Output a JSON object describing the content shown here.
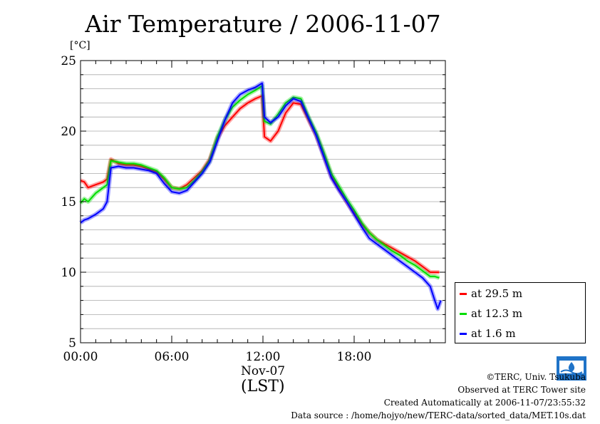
{
  "title": "Air Temperature / 2006-11-07",
  "unit_label": "[°C]",
  "x_date_label": "Nov-07",
  "x_axis_label": "(LST)",
  "colors": {
    "red": "#ff0000",
    "green": "#00dd00",
    "blue": "#0000ff"
  },
  "footer": {
    "credit": "©TERC, Univ. Tsukuba",
    "site": "Observed at TERC Tower site",
    "created": "Created Automatically at 2006-11-07/23:55:32",
    "source": "Data source : /home/hojyo/new/TERC-data/sorted_data/MET.10s.dat"
  },
  "logo_icon": "terc-logo-icon",
  "chart_data": {
    "type": "line",
    "title": "Air Temperature / 2006-11-07",
    "xlabel": "(LST)",
    "ylabel": "[°C]",
    "xlim": [
      0,
      24
    ],
    "ylim": [
      5,
      25
    ],
    "x_ticks": [
      {
        "value": 0,
        "label": "00:00"
      },
      {
        "value": 6,
        "label": "06:00"
      },
      {
        "value": 12,
        "label": "12:00"
      },
      {
        "value": 18,
        "label": "18:00"
      }
    ],
    "y_ticks": [
      {
        "value": 5,
        "label": "5"
      },
      {
        "value": 10,
        "label": "10"
      },
      {
        "value": 15,
        "label": "15"
      },
      {
        "value": 20,
        "label": "20"
      },
      {
        "value": 25,
        "label": "25"
      }
    ],
    "grid": true,
    "legend_position": "bottom-right outside",
    "series": [
      {
        "name": "at 29.5 m",
        "color": "#ff0000",
        "x": [
          0,
          0.25,
          0.5,
          1,
          1.5,
          1.75,
          2,
          2.5,
          3,
          3.5,
          4,
          4.5,
          5,
          5.5,
          6,
          6.5,
          7,
          7.5,
          8,
          8.5,
          9,
          9.5,
          10,
          10.5,
          11,
          11.5,
          11.95,
          12.1,
          12.5,
          13,
          13.5,
          14,
          14.5,
          15,
          15.5,
          16,
          16.5,
          17,
          17.5,
          18,
          18.5,
          19,
          19.5,
          20,
          20.5,
          21,
          21.5,
          22,
          22.5,
          23,
          23.3,
          23.6
        ],
        "y": [
          16.5,
          16.4,
          16.0,
          16.2,
          16.4,
          16.6,
          18.0,
          17.7,
          17.6,
          17.6,
          17.5,
          17.3,
          17.1,
          16.6,
          16.0,
          15.9,
          16.2,
          16.7,
          17.2,
          18.0,
          19.5,
          20.4,
          21.0,
          21.6,
          22.0,
          22.3,
          22.5,
          19.6,
          19.3,
          20.0,
          21.3,
          22.0,
          21.9,
          20.8,
          19.7,
          18.3,
          16.8,
          15.9,
          15.0,
          14.2,
          13.4,
          12.8,
          12.3,
          12.0,
          11.7,
          11.4,
          11.1,
          10.8,
          10.4,
          10.0,
          10.0,
          10.0
        ]
      },
      {
        "name": "at 12.3 m",
        "color": "#00dd00",
        "x": [
          0,
          0.25,
          0.5,
          1,
          1.5,
          1.75,
          2,
          2.5,
          3,
          3.5,
          4,
          4.5,
          5,
          5.5,
          6,
          6.5,
          7,
          7.5,
          8,
          8.5,
          9,
          9.5,
          10,
          10.5,
          11,
          11.5,
          11.95,
          12.1,
          12.5,
          13,
          13.5,
          14,
          14.5,
          15,
          15.5,
          16,
          16.5,
          17,
          17.5,
          18,
          18.5,
          19,
          19.5,
          20,
          20.5,
          21,
          21.5,
          22,
          22.5,
          23,
          23.3,
          23.6
        ],
        "y": [
          14.9,
          15.2,
          15.0,
          15.6,
          16.0,
          16.2,
          17.9,
          17.8,
          17.7,
          17.7,
          17.6,
          17.4,
          17.2,
          16.7,
          16.0,
          15.9,
          16.0,
          16.5,
          17.1,
          17.9,
          19.6,
          20.8,
          21.7,
          22.2,
          22.6,
          22.9,
          23.2,
          20.7,
          20.5,
          21.2,
          22.0,
          22.4,
          22.3,
          21.0,
          19.9,
          18.5,
          17.0,
          16.1,
          15.2,
          14.4,
          13.5,
          12.8,
          12.3,
          11.9,
          11.5,
          11.2,
          10.8,
          10.5,
          10.1,
          9.7,
          9.7,
          9.6
        ]
      },
      {
        "name": "at 1.6 m",
        "color": "#0000ff",
        "x": [
          0,
          0.25,
          0.5,
          1,
          1.5,
          1.75,
          2,
          2.5,
          3,
          3.5,
          4,
          4.5,
          5,
          5.5,
          6,
          6.5,
          7,
          7.5,
          8,
          8.5,
          9,
          9.5,
          10,
          10.5,
          11,
          11.5,
          11.95,
          12.1,
          12.5,
          13,
          13.5,
          14,
          14.5,
          15,
          15.5,
          16,
          16.5,
          17,
          17.5,
          18,
          18.5,
          19,
          19.5,
          20,
          20.5,
          21,
          21.5,
          22,
          22.5,
          23,
          23.3,
          23.5,
          23.7
        ],
        "y": [
          13.5,
          13.7,
          13.8,
          14.1,
          14.5,
          15.0,
          17.4,
          17.5,
          17.4,
          17.4,
          17.3,
          17.2,
          17.0,
          16.3,
          15.7,
          15.6,
          15.8,
          16.4,
          17.0,
          17.8,
          19.3,
          20.8,
          22.0,
          22.6,
          22.9,
          23.1,
          23.4,
          21.0,
          20.6,
          21.0,
          21.8,
          22.3,
          22.1,
          20.9,
          19.7,
          18.2,
          16.7,
          15.8,
          15.0,
          14.1,
          13.2,
          12.4,
          12.0,
          11.6,
          11.2,
          10.8,
          10.4,
          10.0,
          9.6,
          9.0,
          8.0,
          7.4,
          8.0
        ]
      }
    ]
  }
}
